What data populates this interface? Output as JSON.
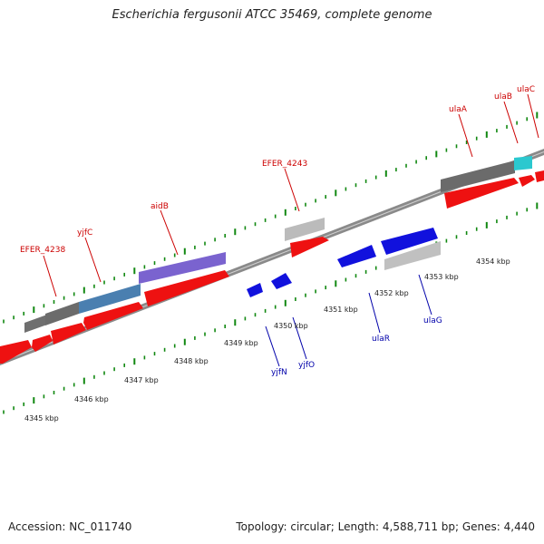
{
  "title": "Escherichia fergusonii ATCC 35469, complete genome",
  "accession": "Accession: NC_011740",
  "summary": "Topology: circular; Length: 4,588,711 bp; Genes: 4,440",
  "colors": {
    "cds_forward": "#ee1111",
    "cds_reverse": "#1111dd",
    "label_forward": "#cc0000",
    "label_reverse": "#0000aa",
    "tick": "#118811",
    "backbone": "#888888"
  },
  "scale_ticks": [
    {
      "label": "4345 kbp"
    },
    {
      "label": "4346 kbp"
    },
    {
      "label": "4347 kbp"
    },
    {
      "label": "4348 kbp"
    },
    {
      "label": "4349 kbp"
    },
    {
      "label": "4350 kbp"
    },
    {
      "label": "4351 kbp"
    },
    {
      "label": "4352 kbp"
    },
    {
      "label": "4353 kbp"
    },
    {
      "label": "4354 kbp"
    }
  ],
  "gene_labels": {
    "forward": [
      "EFER_4238",
      "yjfC",
      "aidB",
      "EFER_4243",
      "ulaA",
      "ulaB",
      "ulaC"
    ],
    "reverse": [
      "yjfN",
      "yjfO",
      "ulaR",
      "ulaG"
    ]
  }
}
